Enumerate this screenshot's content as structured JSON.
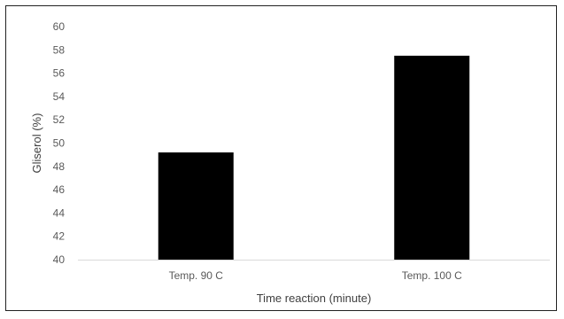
{
  "chart_data": {
    "type": "bar",
    "title": "",
    "xlabel": "Time reaction (minute)",
    "ylabel": "Gliserol (%)",
    "categories": [
      "Temp. 90 C",
      "Temp. 100 C"
    ],
    "values": [
      49.2,
      57.5
    ],
    "ylim": [
      40,
      60
    ],
    "yticks": [
      40,
      42,
      44,
      46,
      48,
      50,
      52,
      54,
      56,
      58,
      60
    ],
    "grid": false,
    "legend": "none",
    "bar_color": "#000000",
    "axis_color": "#d9d9d9",
    "text_color": "#595959"
  }
}
